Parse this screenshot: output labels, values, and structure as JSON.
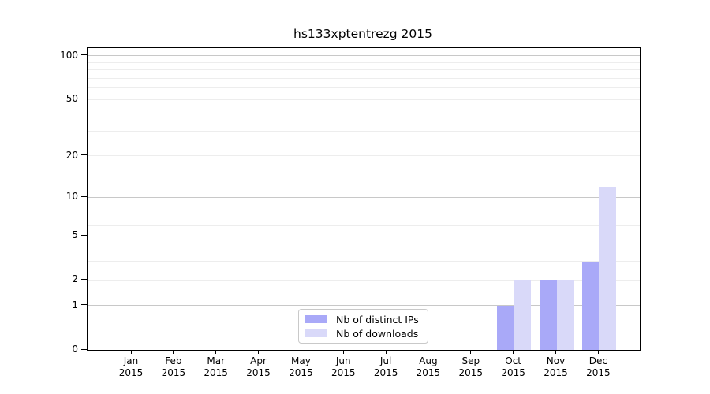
{
  "chart_data": {
    "type": "bar",
    "title": "hs133xptentrezg 2015",
    "xlabel": "",
    "ylabel": "",
    "categories": [
      "Jan",
      "Feb",
      "Mar",
      "Apr",
      "May",
      "Jun",
      "Jul",
      "Aug",
      "Sep",
      "Oct",
      "Nov",
      "Dec"
    ],
    "x_year_label": "2015",
    "series": [
      {
        "name": "Nb of distinct IPs",
        "color": "#a9a9f8",
        "values": [
          0,
          0,
          0,
          0,
          0,
          0,
          0,
          0,
          0,
          1,
          2,
          3
        ]
      },
      {
        "name": "Nb of downloads",
        "color": "#d9d9f9",
        "values": [
          0,
          0,
          0,
          0,
          0,
          0,
          0,
          0,
          0,
          2,
          2,
          12
        ]
      }
    ],
    "y_axis": {
      "scale": "log1p",
      "tick_labels": [
        0,
        1,
        2,
        5,
        10,
        20,
        50,
        100
      ],
      "major_gridlines": [
        1,
        10,
        100
      ],
      "minor_gridlines": [
        2,
        3,
        4,
        5,
        6,
        7,
        8,
        9,
        20,
        30,
        40,
        50,
        60,
        70,
        80,
        90
      ],
      "ylim": [
        0,
        113
      ]
    },
    "grid": "horizontal",
    "legend_position": "bottom-center"
  },
  "colors": {
    "background": "#ffffff",
    "axis": "#000000",
    "major_grid": "#c8c8c8",
    "minor_grid": "#ededed",
    "legend_border": "#c9c9c9",
    "bar_distinct_ips": "#a9a9f8",
    "bar_downloads": "#d9d9f9"
  }
}
